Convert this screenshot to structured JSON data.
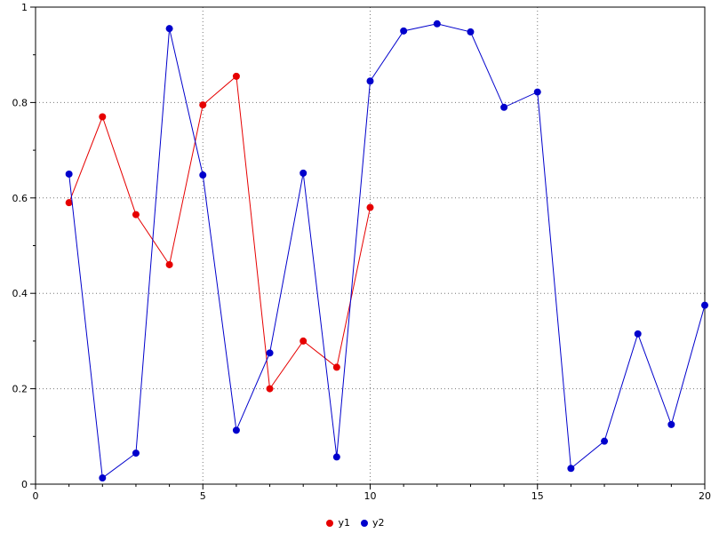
{
  "chart_data": {
    "type": "line",
    "title": "",
    "xlabel": "",
    "ylabel": "",
    "xlim": [
      0,
      20
    ],
    "ylim": [
      0,
      1
    ],
    "x_ticks": [
      0,
      5,
      10,
      15,
      20
    ],
    "x_tick_labels": [
      "0",
      "5",
      "10",
      "15",
      "20"
    ],
    "y_ticks": [
      0,
      0.2,
      0.4,
      0.6,
      0.8,
      1
    ],
    "y_tick_labels": [
      "0",
      "0.2",
      "0.4",
      "0.6",
      "0.8",
      "1"
    ],
    "x_minor_step": 1,
    "y_minor_step": 0.1,
    "grid": true,
    "grid_color": "#777777",
    "axis_color": "#000000",
    "background_color": "#ffffff",
    "marker": "circle",
    "marker_radius": 4,
    "legend_position": "bottom-center",
    "series": [
      {
        "name": "y1",
        "color": "#e60000",
        "x": [
          1,
          2,
          3,
          4,
          5,
          6,
          7,
          8,
          9,
          10
        ],
        "y": [
          0.59,
          0.77,
          0.565,
          0.46,
          0.795,
          0.855,
          0.2,
          0.3,
          0.245,
          0.58
        ]
      },
      {
        "name": "y2",
        "color": "#0000cc",
        "x": [
          1,
          2,
          3,
          4,
          5,
          6,
          7,
          8,
          9,
          10,
          11,
          12,
          13,
          14,
          15,
          16,
          17,
          18,
          19,
          20
        ],
        "y": [
          0.65,
          0.013,
          0.065,
          0.955,
          0.648,
          0.113,
          0.275,
          0.652,
          0.057,
          0.845,
          0.95,
          0.965,
          0.948,
          0.79,
          0.822,
          0.033,
          0.09,
          0.315,
          0.125,
          0.375
        ]
      }
    ]
  }
}
